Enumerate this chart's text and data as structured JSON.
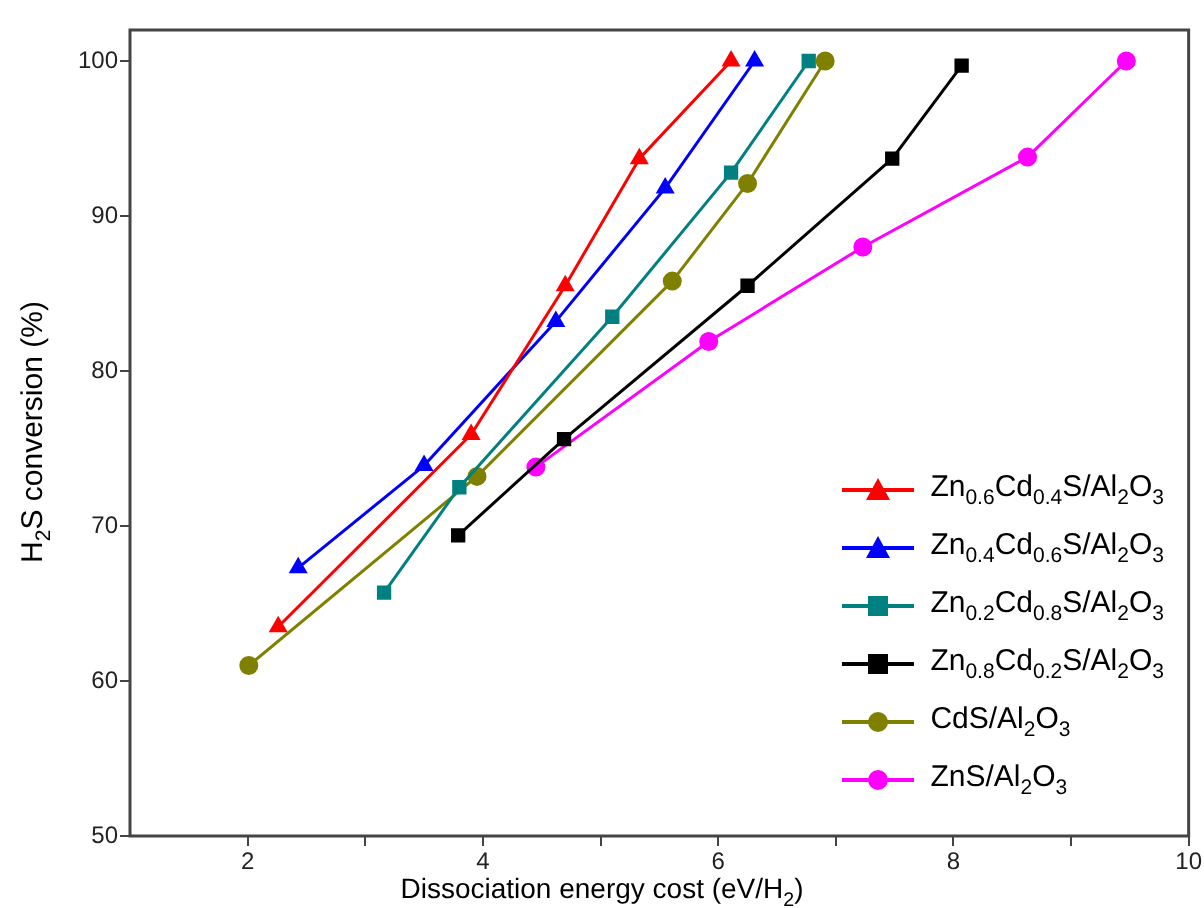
{
  "chart_data": {
    "type": "line",
    "xlabel": "Dissociation energy cost (eV/H$_{2}$)",
    "ylabel": "H$_{2}$S conversion (%)",
    "xlim": [
      1,
      10
    ],
    "xticks": [
      2,
      {
        "value": 3,
        "label": null
      },
      4,
      {
        "value": 5,
        "label": null
      },
      6,
      {
        "value": 7,
        "label": null
      },
      8,
      {
        "value": 9,
        "label": null
      },
      10
    ],
    "ylim": [
      50,
      102
    ],
    "yticks": [
      50,
      60,
      70,
      80,
      90,
      100
    ],
    "grid": false,
    "legend": "bottom right",
    "line_style": "solid",
    "series": [
      {
        "name": "Zn$_{0.6}$Cd$_{0.4}$S/Al$_{2}$O$_{3}$",
        "color": "#ff0000",
        "marker": "triangle",
        "x": [
          2.26,
          3.9,
          4.7,
          5.33,
          6.11
        ],
        "values": [
          63.5,
          75.9,
          85.5,
          93.7,
          100
        ]
      },
      {
        "name": "Zn$_{0.4}$Cd$_{0.6}$S/Al$_{2}$O$_{3}$",
        "color": "#0000ff",
        "marker": "triangle",
        "x": [
          2.43,
          3.5,
          4.62,
          5.55,
          6.31
        ],
        "values": [
          67.3,
          73.9,
          83.2,
          91.8,
          100
        ]
      },
      {
        "name": "Zn$_{0.2}$Cd$_{0.8}$S/Al$_{2}$O$_{3}$",
        "color": "#008080",
        "marker": "square",
        "x": [
          3.16,
          3.8,
          5.1,
          6.11,
          6.77
        ],
        "values": [
          65.7,
          72.5,
          83.5,
          92.8,
          100
        ]
      },
      {
        "name": "Zn$_{0.8}$Cd$_{0.2}$S/Al$_{2}$O$_{3}$",
        "color": "#000000",
        "marker": "square",
        "x": [
          3.79,
          4.69,
          6.25,
          7.48,
          8.07
        ],
        "values": [
          69.4,
          75.6,
          85.5,
          93.7,
          99.7
        ]
      },
      {
        "name": "CdS/Al$_{2}$O$_{3}$",
        "color": "#808000",
        "marker": "circle",
        "x": [
          2.01,
          3.95,
          5.61,
          6.25,
          6.91
        ],
        "values": [
          61.0,
          73.2,
          85.8,
          92.1,
          100
        ]
      },
      {
        "name": "ZnS/Al$_{2}$O$_{3}$",
        "color": "#ff00ff",
        "marker": "circle",
        "x": [
          4.45,
          5.92,
          7.23,
          8.63,
          9.47
        ],
        "values": [
          73.8,
          81.9,
          88.0,
          93.8,
          100
        ]
      }
    ]
  }
}
